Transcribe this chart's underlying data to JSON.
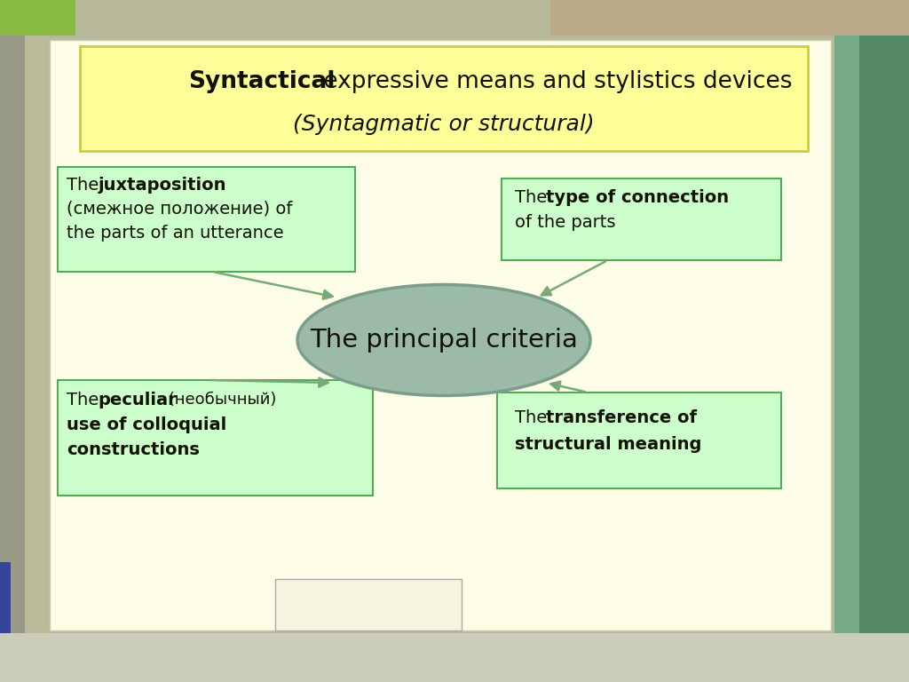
{
  "title_line1_bold": "Syntactical",
  "title_line1_normal": " expressive means and stylistics devices",
  "title_line2_italic": "(Syntagmatic or structural)",
  "center_text": "The principal criteria",
  "box_tl_line1_bold": "juxtaposition",
  "box_tl_line2": "(смежное положение) of",
  "box_tl_line3": "the parts of an utterance",
  "box_tr_line1_bold": "type of connection",
  "box_tr_line2": "of the parts",
  "box_bl_line1_bold": "peculiar",
  "box_bl_line1_after": " (необычный)",
  "box_bl_line2": "use of colloquial",
  "box_bl_line3": "constructions",
  "box_br_line1_bold": "transference of",
  "box_br_line2_bold": "structural meaning",
  "bg_outer": "#b8b89a",
  "bg_main": "#fdfde8",
  "title_bg": "#ffff99",
  "box_bg": "#ccffcc",
  "ellipse_bg": "#9bbba8",
  "ellipse_border": "#7a9e8a",
  "box_border": "#55aa55",
  "title_border": "#cccc44",
  "arrow_color": "#77aa77",
  "text_color": "#111100",
  "accent_green_tl": "#88bb44",
  "accent_tan_tr": "#bbaa88",
  "accent_teal_r1": "#558866",
  "accent_teal_r2": "#77aa88",
  "accent_gray_l": "#999988",
  "accent_olive_l": "#bbbb99",
  "accent_blue": "#334499",
  "bottom_bar": "#ccccbb"
}
